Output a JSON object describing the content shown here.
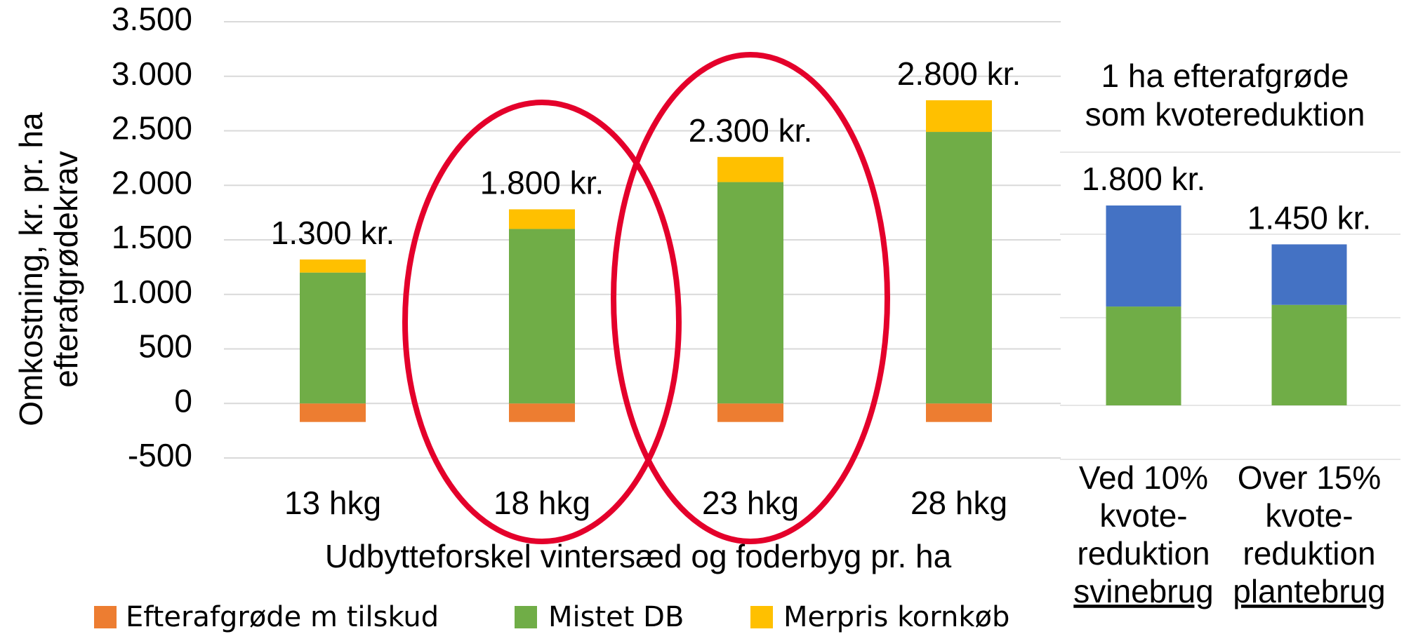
{
  "chart_data": [
    {
      "type": "stacked_bar",
      "y_axis_label": [
        "Omkostning, kr. pr. ha",
        "efterafgrødekrav"
      ],
      "x_axis_label": "Udbytteforskel vintersæd og foderbyg pr. ha",
      "categories": [
        "13 hkg",
        "18 hkg",
        "23 hkg",
        "28 hkg"
      ],
      "series": [
        {
          "name": "Efterafgrøde m tilskud",
          "color": "#ed7d31",
          "values": [
            -170,
            -170,
            -170,
            -170
          ]
        },
        {
          "name": "Mistet DB",
          "color": "#70ad47",
          "values": [
            1200,
            1600,
            2030,
            2490
          ]
        },
        {
          "name": "Merpris kornkøb",
          "color": "#ffc000",
          "values": [
            120,
            180,
            230,
            290
          ]
        }
      ],
      "annotations": [
        "1.300 kr.",
        "1.800 kr.",
        "2.300 kr.",
        "2.800 kr."
      ],
      "ylim": [
        -500,
        3500
      ],
      "yticks": [
        {
          "value": -500,
          "label": "-500"
        },
        0,
        500,
        {
          "value": 1000,
          "label": "1.000"
        },
        {
          "value": 1500,
          "label": "1.500"
        },
        {
          "value": 2000,
          "label": "2.000"
        },
        {
          "value": 2500,
          "label": "2.500"
        },
        {
          "value": 3000,
          "label": "3.000"
        },
        {
          "value": 3500,
          "label": "3.500"
        }
      ],
      "grid": true,
      "legend": "bottom"
    },
    {
      "type": "stacked_bar",
      "title": [
        "1 ha efterafgrøde",
        "som kvotereduktion"
      ],
      "categories": [
        [
          "Ved 10%",
          "kvote-",
          "reduktion",
          "svinebrug"
        ],
        [
          "Over 15%",
          "kvote-",
          "reduktion",
          "plantebrug"
        ]
      ],
      "series": [
        {
          "color": "#70ad47",
          "values": [
            890,
            905
          ]
        },
        {
          "color": "#4472c4",
          "values": [
            910,
            545
          ]
        }
      ],
      "annotations": [
        "1.800 kr.",
        "1.450 kr."
      ],
      "ylim": [
        0,
        1800
      ]
    }
  ]
}
